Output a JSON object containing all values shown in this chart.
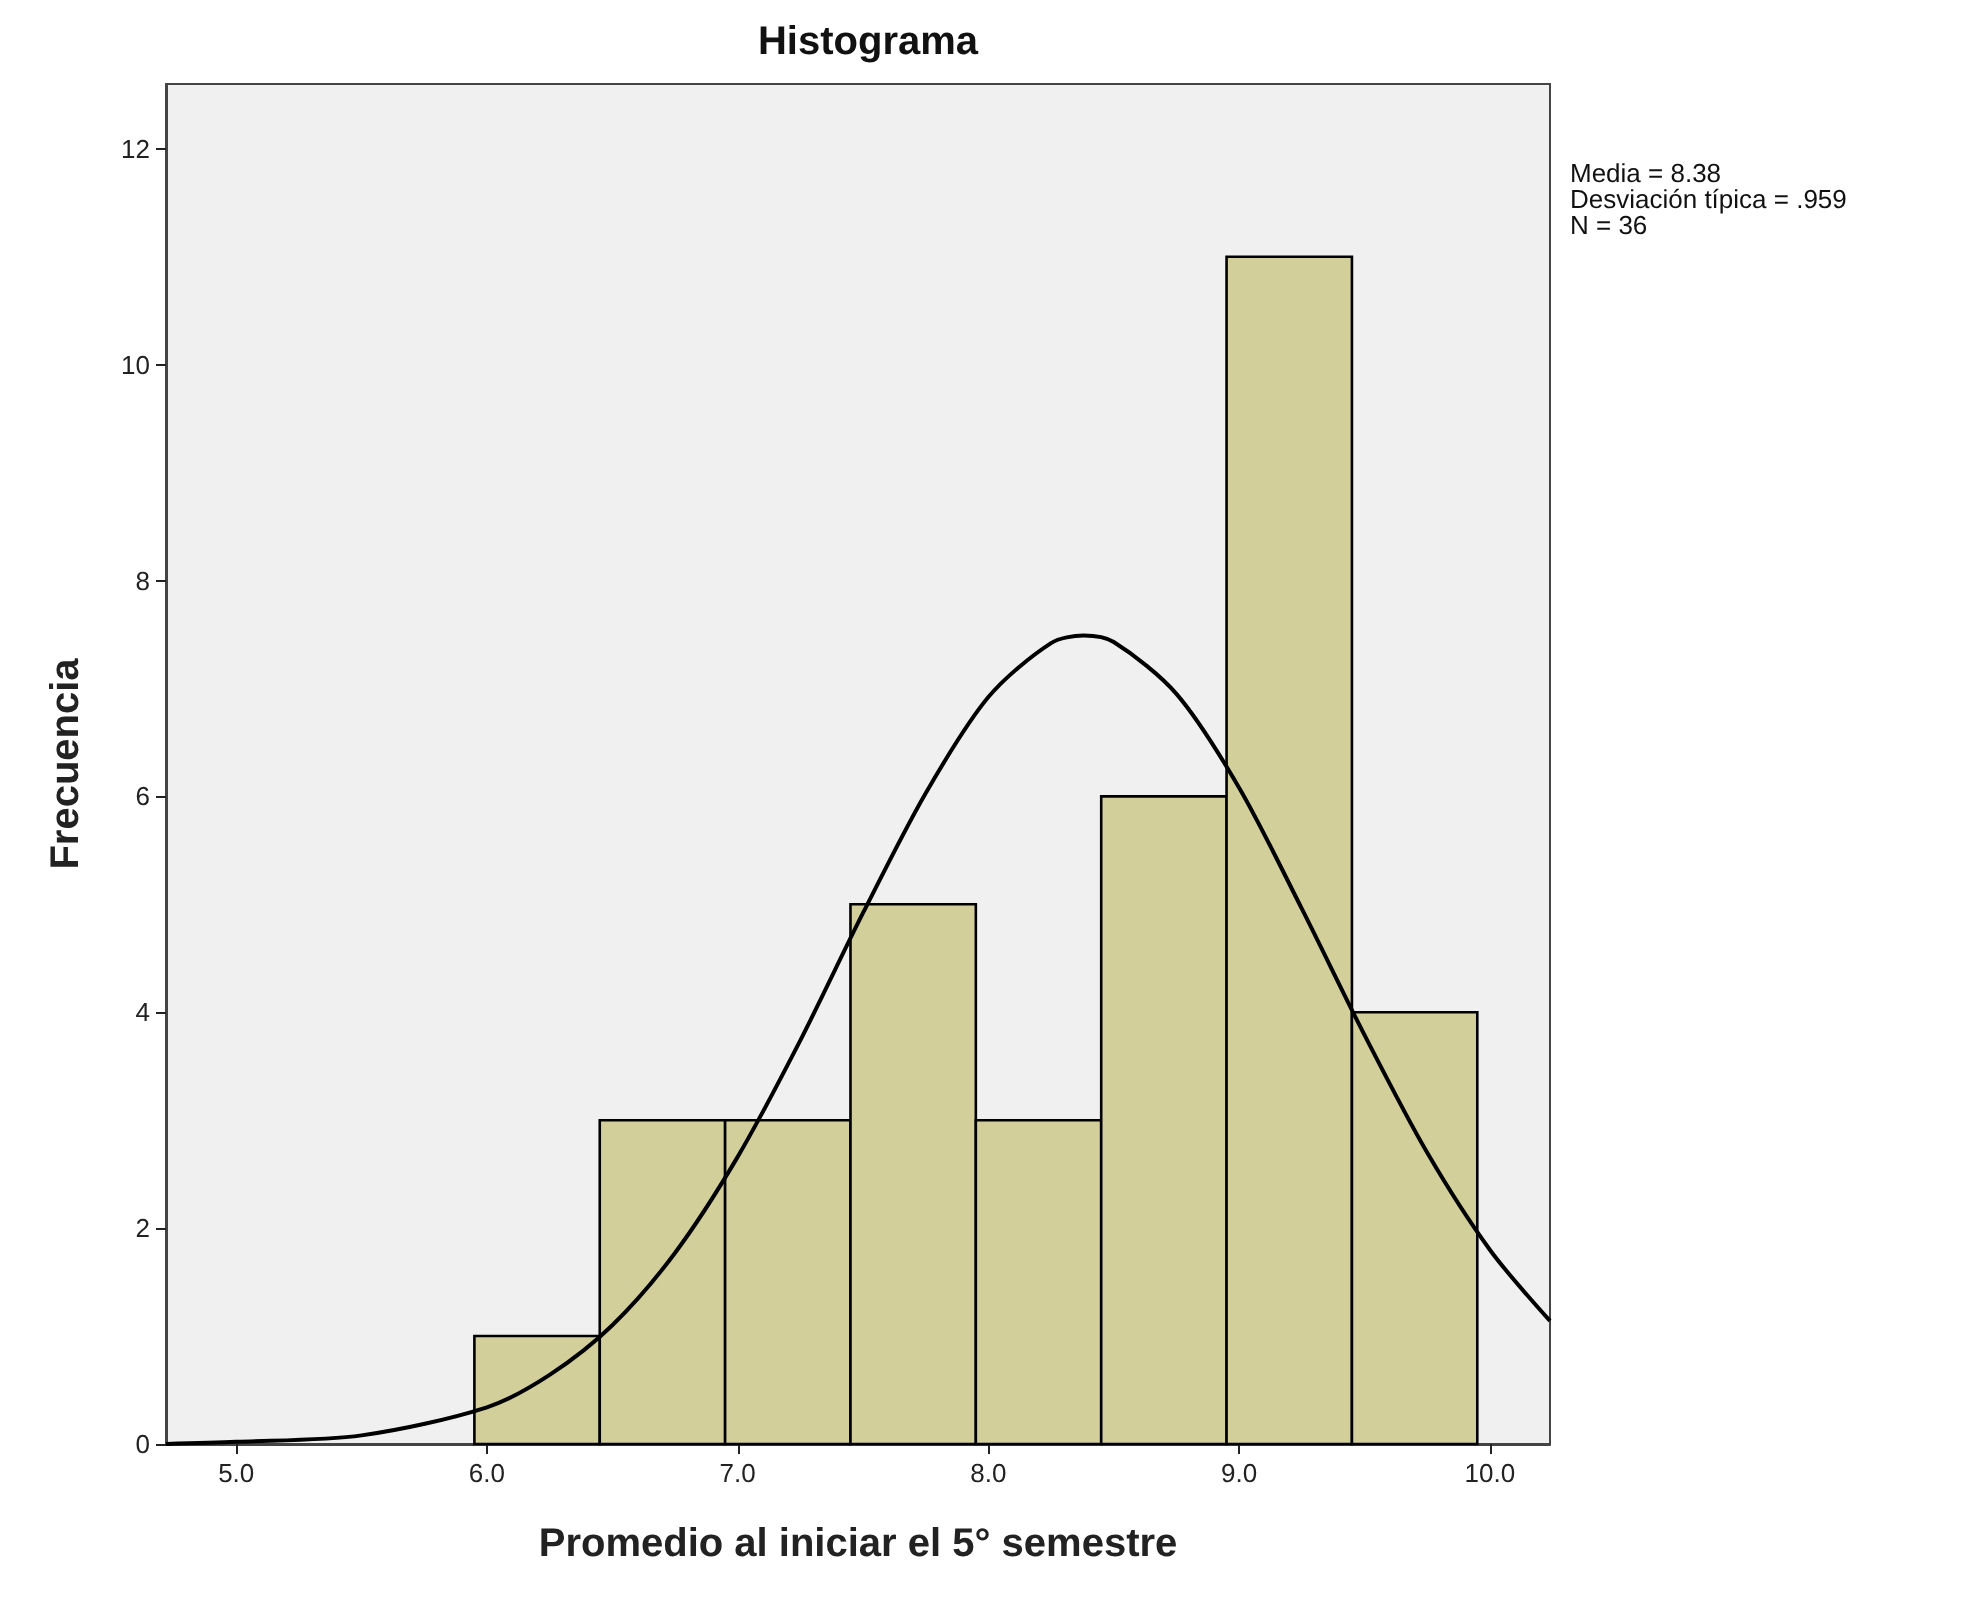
{
  "chart_data": {
    "type": "histogram",
    "title": "Histograma",
    "xlabel": "Promedio al iniciar el 5° semestre",
    "ylabel": "Frecuencia",
    "annotations": [
      "Media = 8.38",
      "Desviación típica = .959",
      "N = 36"
    ],
    "bins": [
      5.95,
      6.45,
      6.95,
      7.45,
      7.95,
      8.45,
      8.95,
      9.45,
      9.95
    ],
    "values": [
      1,
      3,
      3,
      5,
      3,
      6,
      11,
      4
    ],
    "color": "#d3cf9a",
    "series": [
      {
        "type": "line",
        "color": "#000000",
        "x": [
          4.72,
          5.0,
          5.5,
          6.0,
          6.25,
          6.5,
          6.75,
          7.0,
          7.25,
          7.5,
          7.75,
          8.0,
          8.25,
          8.38,
          8.5,
          8.75,
          9.0,
          9.25,
          9.5,
          9.75,
          10.0,
          10.24
        ],
        "values": [
          0.0,
          0.02,
          0.08,
          0.34,
          0.64,
          1.1,
          1.77,
          2.66,
          3.74,
          4.92,
          6.03,
          6.92,
          7.42,
          7.49,
          7.43,
          6.95,
          6.08,
          4.96,
          3.79,
          2.7,
          1.8,
          1.14
        ]
      }
    ],
    "xlim": [
      4.72,
      10.24
    ],
    "xticks": [
      {
        "value": 5,
        "label": "5.0"
      },
      {
        "value": 6,
        "label": "6.0"
      },
      {
        "value": 7,
        "label": "7.0"
      },
      {
        "value": 8,
        "label": "8.0"
      },
      {
        "value": 9,
        "label": "9.0"
      },
      {
        "value": 10,
        "label": "10.0"
      }
    ],
    "ylim": [
      0,
      12.6
    ],
    "yticks": [
      0,
      2,
      4,
      6,
      8,
      10,
      12
    ],
    "grid": false
  }
}
